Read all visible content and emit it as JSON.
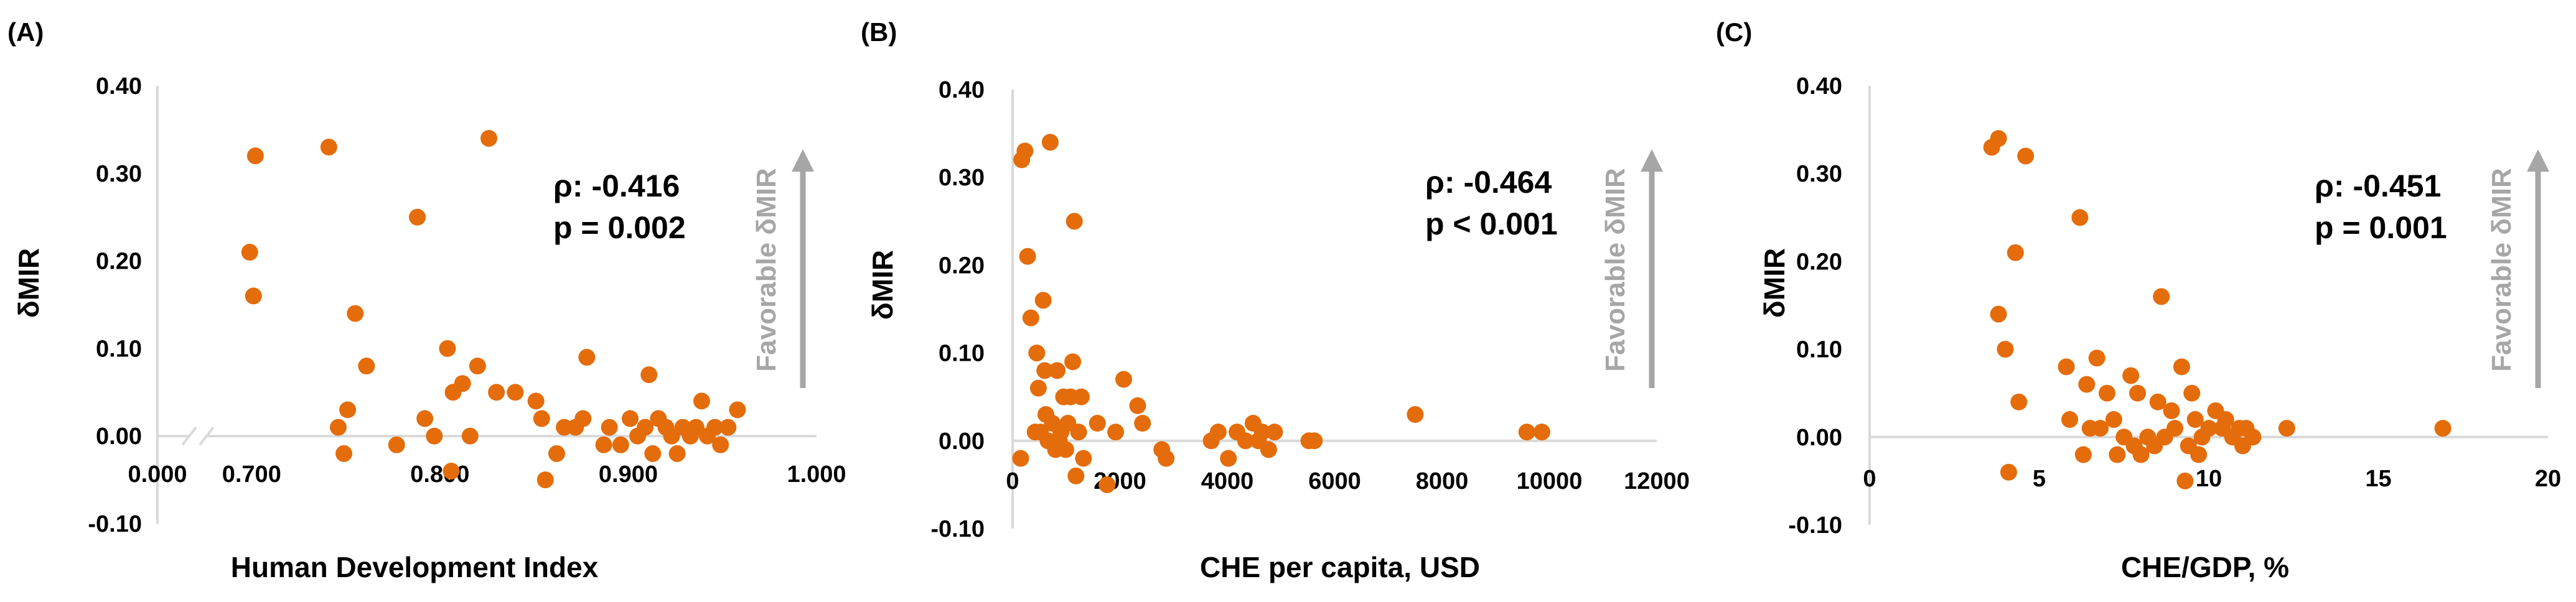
{
  "colors": {
    "point": "#E46C0A",
    "axis": "#d9d9d9",
    "favorable": "#a6a6a6",
    "text": "#000000"
  },
  "chart_data": [
    {
      "type": "scatter",
      "panel_label": "(A)",
      "xlabel": "Human Development Index",
      "ylabel": "δMIR",
      "x_ticks": [
        "0.000",
        "0.700",
        "0.800",
        "0.900",
        "1.000"
      ],
      "x_tick_values": [
        0.65,
        0.7,
        0.8,
        0.9,
        1.0
      ],
      "axis_break": true,
      "xlim": [
        0.65,
        1.0
      ],
      "y_ticks": [
        "0.40",
        "0.30",
        "0.20",
        "0.10",
        "0.00",
        "-0.10"
      ],
      "ylim": [
        -0.1,
        0.4
      ],
      "stat_rho": "ρ: -0.416",
      "stat_p": "p = 0.002",
      "favorable_label": "Favorable δMIR",
      "points": [
        {
          "x": 0.699,
          "y": 0.21
        },
        {
          "x": 0.701,
          "y": 0.16
        },
        {
          "x": 0.702,
          "y": 0.32
        },
        {
          "x": 0.741,
          "y": 0.33
        },
        {
          "x": 0.746,
          "y": 0.01
        },
        {
          "x": 0.749,
          "y": -0.02
        },
        {
          "x": 0.751,
          "y": 0.03
        },
        {
          "x": 0.755,
          "y": 0.14
        },
        {
          "x": 0.761,
          "y": 0.08
        },
        {
          "x": 0.777,
          "y": -0.01
        },
        {
          "x": 0.788,
          "y": 0.25
        },
        {
          "x": 0.792,
          "y": 0.02
        },
        {
          "x": 0.797,
          "y": 0.0
        },
        {
          "x": 0.804,
          "y": 0.1
        },
        {
          "x": 0.806,
          "y": -0.04
        },
        {
          "x": 0.807,
          "y": 0.05
        },
        {
          "x": 0.812,
          "y": 0.06
        },
        {
          "x": 0.816,
          "y": 0.0
        },
        {
          "x": 0.82,
          "y": 0.08
        },
        {
          "x": 0.826,
          "y": 0.34
        },
        {
          "x": 0.83,
          "y": 0.05
        },
        {
          "x": 0.84,
          "y": 0.05
        },
        {
          "x": 0.851,
          "y": 0.04
        },
        {
          "x": 0.854,
          "y": 0.02
        },
        {
          "x": 0.856,
          "y": -0.05
        },
        {
          "x": 0.862,
          "y": -0.02
        },
        {
          "x": 0.866,
          "y": 0.01
        },
        {
          "x": 0.872,
          "y": 0.01
        },
        {
          "x": 0.876,
          "y": 0.02
        },
        {
          "x": 0.878,
          "y": 0.09
        },
        {
          "x": 0.887,
          "y": -0.01
        },
        {
          "x": 0.89,
          "y": 0.01
        },
        {
          "x": 0.896,
          "y": -0.01
        },
        {
          "x": 0.901,
          "y": 0.02
        },
        {
          "x": 0.905,
          "y": 0.0
        },
        {
          "x": 0.909,
          "y": 0.01
        },
        {
          "x": 0.911,
          "y": 0.07
        },
        {
          "x": 0.913,
          "y": -0.02
        },
        {
          "x": 0.916,
          "y": 0.02
        },
        {
          "x": 0.92,
          "y": 0.01
        },
        {
          "x": 0.923,
          "y": 0.0
        },
        {
          "x": 0.926,
          "y": -0.02
        },
        {
          "x": 0.929,
          "y": 0.01
        },
        {
          "x": 0.933,
          "y": 0.0
        },
        {
          "x": 0.936,
          "y": 0.01
        },
        {
          "x": 0.939,
          "y": 0.04
        },
        {
          "x": 0.942,
          "y": 0.0
        },
        {
          "x": 0.946,
          "y": 0.01
        },
        {
          "x": 0.949,
          "y": -0.01
        },
        {
          "x": 0.953,
          "y": 0.01
        },
        {
          "x": 0.958,
          "y": 0.03
        }
      ]
    },
    {
      "type": "scatter",
      "panel_label": "(B)",
      "xlabel": "CHE per capita, USD",
      "ylabel": "δMIR",
      "x_ticks": [
        "0",
        "2000",
        "4000",
        "6000",
        "8000",
        "10000",
        "12000"
      ],
      "x_tick_values": [
        0,
        2000,
        4000,
        6000,
        8000,
        10000,
        12000
      ],
      "axis_break": false,
      "xlim": [
        0,
        12000
      ],
      "y_ticks": [
        "0.40",
        "0.30",
        "0.20",
        "0.10",
        "0.00",
        "-0.10"
      ],
      "ylim": [
        -0.1,
        0.4
      ],
      "stat_rho": "ρ: -0.464",
      "stat_p": "p < 0.001",
      "favorable_label": "Favorable δMIR",
      "points": [
        {
          "x": 150,
          "y": -0.02
        },
        {
          "x": 170,
          "y": 0.32
        },
        {
          "x": 230,
          "y": 0.33
        },
        {
          "x": 280,
          "y": 0.21
        },
        {
          "x": 340,
          "y": 0.14
        },
        {
          "x": 420,
          "y": 0.01
        },
        {
          "x": 450,
          "y": 0.1
        },
        {
          "x": 480,
          "y": 0.06
        },
        {
          "x": 520,
          "y": 0.01
        },
        {
          "x": 570,
          "y": 0.16
        },
        {
          "x": 600,
          "y": 0.08
        },
        {
          "x": 620,
          "y": 0.03
        },
        {
          "x": 660,
          "y": 0.0
        },
        {
          "x": 700,
          "y": 0.34
        },
        {
          "x": 740,
          "y": 0.02
        },
        {
          "x": 800,
          "y": -0.01
        },
        {
          "x": 830,
          "y": 0.08
        },
        {
          "x": 870,
          "y": 0.0
        },
        {
          "x": 900,
          "y": 0.01
        },
        {
          "x": 950,
          "y": 0.05
        },
        {
          "x": 990,
          "y": -0.01
        },
        {
          "x": 1030,
          "y": 0.02
        },
        {
          "x": 1080,
          "y": 0.05
        },
        {
          "x": 1120,
          "y": 0.09
        },
        {
          "x": 1150,
          "y": 0.25
        },
        {
          "x": 1180,
          "y": -0.04
        },
        {
          "x": 1230,
          "y": 0.01
        },
        {
          "x": 1280,
          "y": 0.05
        },
        {
          "x": 1320,
          "y": -0.02
        },
        {
          "x": 1580,
          "y": 0.02
        },
        {
          "x": 1760,
          "y": -0.05
        },
        {
          "x": 1920,
          "y": 0.01
        },
        {
          "x": 2070,
          "y": 0.07
        },
        {
          "x": 2330,
          "y": 0.04
        },
        {
          "x": 2420,
          "y": 0.02
        },
        {
          "x": 2780,
          "y": -0.01
        },
        {
          "x": 2860,
          "y": -0.02
        },
        {
          "x": 3700,
          "y": 0.0
        },
        {
          "x": 3830,
          "y": 0.01
        },
        {
          "x": 4020,
          "y": -0.02
        },
        {
          "x": 4180,
          "y": 0.01
        },
        {
          "x": 4340,
          "y": 0.0
        },
        {
          "x": 4480,
          "y": 0.02
        },
        {
          "x": 4580,
          "y": 0.0
        },
        {
          "x": 4650,
          "y": 0.01
        },
        {
          "x": 4770,
          "y": -0.01
        },
        {
          "x": 4880,
          "y": 0.01
        },
        {
          "x": 5520,
          "y": 0.0
        },
        {
          "x": 5620,
          "y": 0.0
        },
        {
          "x": 7500,
          "y": 0.03
        },
        {
          "x": 9580,
          "y": 0.01
        },
        {
          "x": 9860,
          "y": 0.01
        }
      ]
    },
    {
      "type": "scatter",
      "panel_label": "(C)",
      "xlabel": "CHE/GDP, %",
      "ylabel": "δMIR",
      "x_ticks": [
        "0",
        "5",
        "10",
        "15",
        "20"
      ],
      "x_tick_values": [
        0,
        5,
        10,
        15,
        20
      ],
      "axis_break": false,
      "xlim": [
        0,
        20
      ],
      "y_ticks": [
        "0.40",
        "0.30",
        "0.20",
        "0.10",
        "0.00",
        "-0.10"
      ],
      "ylim": [
        -0.1,
        0.4
      ],
      "stat_rho": "ρ: -0.451",
      "stat_p": "p = 0.001",
      "favorable_label": "Favorable δMIR",
      "points": [
        {
          "x": 3.6,
          "y": 0.33
        },
        {
          "x": 3.8,
          "y": 0.34
        },
        {
          "x": 3.8,
          "y": 0.14
        },
        {
          "x": 4.0,
          "y": 0.1
        },
        {
          "x": 4.1,
          "y": -0.04
        },
        {
          "x": 4.3,
          "y": 0.21
        },
        {
          "x": 4.4,
          "y": 0.04
        },
        {
          "x": 4.6,
          "y": 0.32
        },
        {
          "x": 5.8,
          "y": 0.08
        },
        {
          "x": 5.9,
          "y": 0.02
        },
        {
          "x": 6.2,
          "y": 0.25
        },
        {
          "x": 6.3,
          "y": -0.02
        },
        {
          "x": 6.4,
          "y": 0.06
        },
        {
          "x": 6.5,
          "y": 0.01
        },
        {
          "x": 6.7,
          "y": 0.09
        },
        {
          "x": 6.8,
          "y": 0.01
        },
        {
          "x": 7.0,
          "y": 0.05
        },
        {
          "x": 7.2,
          "y": 0.02
        },
        {
          "x": 7.3,
          "y": -0.02
        },
        {
          "x": 7.5,
          "y": 0.0
        },
        {
          "x": 7.7,
          "y": 0.07
        },
        {
          "x": 7.8,
          "y": -0.01
        },
        {
          "x": 7.9,
          "y": 0.05
        },
        {
          "x": 8.0,
          "y": -0.02
        },
        {
          "x": 8.2,
          "y": 0.0
        },
        {
          "x": 8.4,
          "y": -0.01
        },
        {
          "x": 8.5,
          "y": 0.04
        },
        {
          "x": 8.6,
          "y": 0.16
        },
        {
          "x": 8.7,
          "y": 0.0
        },
        {
          "x": 8.9,
          "y": 0.03
        },
        {
          "x": 9.0,
          "y": 0.01
        },
        {
          "x": 9.2,
          "y": 0.08
        },
        {
          "x": 9.3,
          "y": -0.05
        },
        {
          "x": 9.4,
          "y": -0.01
        },
        {
          "x": 9.5,
          "y": 0.05
        },
        {
          "x": 9.6,
          "y": 0.02
        },
        {
          "x": 9.7,
          "y": -0.02
        },
        {
          "x": 9.8,
          "y": 0.0
        },
        {
          "x": 10.0,
          "y": 0.01
        },
        {
          "x": 10.2,
          "y": 0.03
        },
        {
          "x": 10.4,
          "y": 0.01
        },
        {
          "x": 10.5,
          "y": 0.02
        },
        {
          "x": 10.7,
          "y": 0.0
        },
        {
          "x": 10.9,
          "y": 0.01
        },
        {
          "x": 11.0,
          "y": -0.01
        },
        {
          "x": 11.1,
          "y": 0.01
        },
        {
          "x": 11.3,
          "y": 0.0
        },
        {
          "x": 12.3,
          "y": 0.01
        },
        {
          "x": 16.9,
          "y": 0.01
        }
      ]
    }
  ]
}
